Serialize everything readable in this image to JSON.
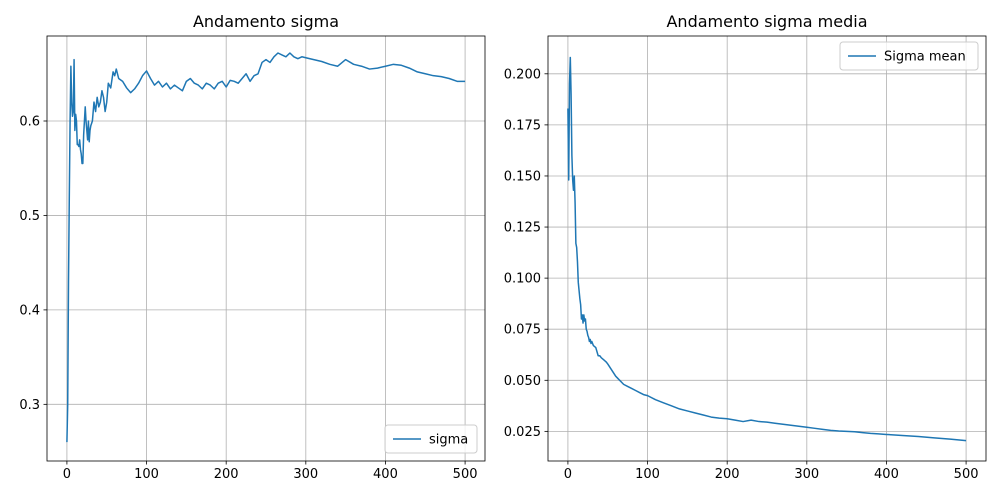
{
  "chart_data": [
    {
      "type": "line",
      "title": "Andamento sigma",
      "xlabel": "",
      "ylabel": "",
      "xlim": [
        -25,
        525
      ],
      "ylim": [
        0.24,
        0.69
      ],
      "xticks": [
        0,
        100,
        200,
        300,
        400,
        500
      ],
      "xtick_labels": [
        "0",
        "100",
        "200",
        "300",
        "400",
        "500"
      ],
      "yticks": [
        0.3,
        0.4,
        0.5,
        0.6
      ],
      "ytick_labels": [
        "0.3",
        "0.4",
        "0.5",
        "0.6"
      ],
      "grid": true,
      "legend_position": "lower-right",
      "series": [
        {
          "name": "sigma",
          "color": "#1f77b4",
          "x": [
            0,
            1,
            2,
            3,
            4,
            5,
            6,
            7,
            8,
            9,
            10,
            11,
            12,
            13,
            14,
            15,
            16,
            17,
            18,
            19,
            20,
            21,
            22,
            23,
            24,
            25,
            26,
            27,
            28,
            29,
            30,
            32,
            34,
            36,
            38,
            40,
            42,
            44,
            46,
            48,
            50,
            52,
            55,
            58,
            60,
            62,
            65,
            70,
            75,
            80,
            85,
            90,
            95,
            100,
            105,
            110,
            115,
            120,
            125,
            130,
            135,
            140,
            145,
            150,
            155,
            160,
            165,
            170,
            175,
            180,
            185,
            190,
            195,
            200,
            205,
            210,
            215,
            220,
            225,
            230,
            235,
            240,
            245,
            250,
            255,
            260,
            265,
            270,
            275,
            280,
            285,
            290,
            295,
            300,
            310,
            320,
            330,
            340,
            350,
            360,
            370,
            380,
            390,
            400,
            410,
            420,
            430,
            440,
            450,
            460,
            470,
            480,
            490,
            500
          ],
          "y": [
            0.26,
            0.3,
            0.43,
            0.52,
            0.6,
            0.658,
            0.62,
            0.605,
            0.61,
            0.665,
            0.59,
            0.607,
            0.6,
            0.575,
            0.575,
            0.573,
            0.58,
            0.57,
            0.565,
            0.555,
            0.555,
            0.585,
            0.6,
            0.615,
            0.6,
            0.59,
            0.58,
            0.6,
            0.578,
            0.59,
            0.595,
            0.6,
            0.62,
            0.61,
            0.625,
            0.615,
            0.62,
            0.632,
            0.625,
            0.61,
            0.62,
            0.64,
            0.635,
            0.652,
            0.648,
            0.655,
            0.645,
            0.642,
            0.635,
            0.63,
            0.634,
            0.64,
            0.648,
            0.653,
            0.645,
            0.638,
            0.642,
            0.636,
            0.64,
            0.634,
            0.638,
            0.635,
            0.632,
            0.642,
            0.645,
            0.64,
            0.638,
            0.634,
            0.64,
            0.638,
            0.634,
            0.64,
            0.642,
            0.636,
            0.643,
            0.642,
            0.64,
            0.645,
            0.65,
            0.642,
            0.648,
            0.65,
            0.662,
            0.665,
            0.662,
            0.668,
            0.672,
            0.67,
            0.668,
            0.672,
            0.668,
            0.666,
            0.668,
            0.667,
            0.665,
            0.663,
            0.66,
            0.658,
            0.665,
            0.66,
            0.658,
            0.655,
            0.656,
            0.658,
            0.66,
            0.659,
            0.656,
            0.652,
            0.65,
            0.648,
            0.647,
            0.645,
            0.642,
            0.642
          ]
        }
      ]
    },
    {
      "type": "line",
      "title": "Andamento sigma media",
      "xlabel": "",
      "ylabel": "",
      "xlim": [
        -25,
        525
      ],
      "ylim": [
        0.0105,
        0.2185
      ],
      "xticks": [
        0,
        100,
        200,
        300,
        400,
        500
      ],
      "xtick_labels": [
        "0",
        "100",
        "200",
        "300",
        "400",
        "500"
      ],
      "yticks": [
        0.025,
        0.05,
        0.075,
        0.1,
        0.125,
        0.15,
        0.175,
        0.2
      ],
      "ytick_labels": [
        "0.025",
        "0.050",
        "0.075",
        "0.100",
        "0.125",
        "0.150",
        "0.175",
        "0.200"
      ],
      "grid": true,
      "legend_position": "top-right",
      "series": [
        {
          "name": "Sigma mean",
          "color": "#1f77b4",
          "x": [
            0,
            1,
            2,
            3,
            4,
            5,
            6,
            7,
            8,
            9,
            10,
            11,
            12,
            13,
            14,
            15,
            16,
            17,
            18,
            19,
            20,
            21,
            22,
            23,
            24,
            25,
            26,
            27,
            28,
            29,
            30,
            32,
            35,
            38,
            40,
            42,
            45,
            48,
            50,
            55,
            60,
            65,
            70,
            75,
            80,
            85,
            90,
            95,
            100,
            110,
            120,
            130,
            140,
            150,
            160,
            170,
            180,
            190,
            200,
            210,
            220,
            230,
            240,
            250,
            260,
            270,
            280,
            290,
            300,
            310,
            320,
            330,
            340,
            350,
            360,
            370,
            380,
            390,
            400,
            420,
            440,
            460,
            480,
            500
          ],
          "y": [
            0.183,
            0.148,
            0.195,
            0.208,
            0.19,
            0.16,
            0.148,
            0.143,
            0.15,
            0.137,
            0.117,
            0.115,
            0.108,
            0.098,
            0.094,
            0.09,
            0.087,
            0.08,
            0.082,
            0.078,
            0.082,
            0.079,
            0.08,
            0.075,
            0.074,
            0.072,
            0.071,
            0.069,
            0.07,
            0.068,
            0.069,
            0.067,
            0.066,
            0.062,
            0.062,
            0.061,
            0.06,
            0.059,
            0.058,
            0.055,
            0.052,
            0.05,
            0.048,
            0.047,
            0.046,
            0.045,
            0.044,
            0.043,
            0.0425,
            0.0405,
            0.039,
            0.0375,
            0.036,
            0.035,
            0.034,
            0.033,
            0.032,
            0.0315,
            0.0312,
            0.0305,
            0.0298,
            0.0305,
            0.0298,
            0.0295,
            0.029,
            0.0285,
            0.028,
            0.0275,
            0.027,
            0.0265,
            0.026,
            0.0255,
            0.0252,
            0.025,
            0.0248,
            0.0244,
            0.024,
            0.0238,
            0.0235,
            0.023,
            0.0225,
            0.0218,
            0.0212,
            0.0205
          ]
        }
      ]
    }
  ]
}
